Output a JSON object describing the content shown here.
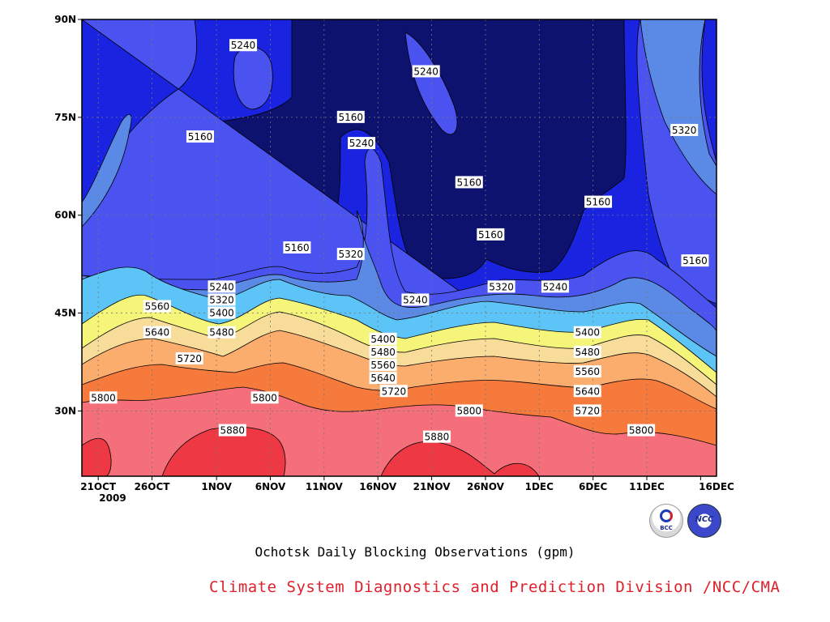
{
  "chart_data": {
    "type": "heatmap",
    "title": "Ochotsk Daily Blocking Observations (gpm)",
    "xlabel": "",
    "ylabel": "",
    "x_ticks": [
      "21OCT",
      "26OCT",
      "1NOV",
      "6NOV",
      "11NOV",
      "16NOV",
      "21NOV",
      "26NOV",
      "1DEC",
      "6DEC",
      "11DEC",
      "16DEC"
    ],
    "x_tick_year": "2009",
    "y_ticks": [
      "30N",
      "45N",
      "60N",
      "75N",
      "90N"
    ],
    "x_range_days": [
      0,
      59
    ],
    "y_range_lat": [
      20,
      90
    ],
    "contour_levels": [
      5160,
      5240,
      5320,
      5400,
      5480,
      5560,
      5640,
      5720,
      5800,
      5880
    ],
    "level_colors": [
      "#0c126e",
      "#1a24e0",
      "#4a52ef",
      "#5b8ae6",
      "#5cc4f6",
      "#f5f57a",
      "#f8dc9a",
      "#fbad6e",
      "#f57a3c",
      "#f46f7a",
      "#ee3844"
    ],
    "grid": true,
    "contour_labels": [
      {
        "text": "5240",
        "day": 15,
        "lat": 86
      },
      {
        "text": "5240",
        "day": 32,
        "lat": 82
      },
      {
        "text": "5160",
        "day": 11,
        "lat": 72
      },
      {
        "text": "5160",
        "day": 25,
        "lat": 75
      },
      {
        "text": "5240",
        "day": 26,
        "lat": 71
      },
      {
        "text": "5320",
        "day": 56,
        "lat": 73
      },
      {
        "text": "5160",
        "day": 36,
        "lat": 65
      },
      {
        "text": "5160",
        "day": 48,
        "lat": 62
      },
      {
        "text": "5160",
        "day": 38,
        "lat": 57
      },
      {
        "text": "5160",
        "day": 20,
        "lat": 55
      },
      {
        "text": "5320",
        "day": 25,
        "lat": 54
      },
      {
        "text": "5160",
        "day": 57,
        "lat": 53
      },
      {
        "text": "5240",
        "day": 13,
        "lat": 49
      },
      {
        "text": "5320",
        "day": 39,
        "lat": 49
      },
      {
        "text": "5240",
        "day": 44,
        "lat": 49
      },
      {
        "text": "5320",
        "day": 13,
        "lat": 47
      },
      {
        "text": "5240",
        "day": 31,
        "lat": 47
      },
      {
        "text": "5560",
        "day": 7,
        "lat": 46
      },
      {
        "text": "5400",
        "day": 13,
        "lat": 45
      },
      {
        "text": "5480",
        "day": 13,
        "lat": 42
      },
      {
        "text": "5640",
        "day": 7,
        "lat": 42
      },
      {
        "text": "5400",
        "day": 28,
        "lat": 41
      },
      {
        "text": "5400",
        "day": 47,
        "lat": 42
      },
      {
        "text": "5480",
        "day": 28,
        "lat": 39
      },
      {
        "text": "5480",
        "day": 47,
        "lat": 39
      },
      {
        "text": "5560",
        "day": 28,
        "lat": 37
      },
      {
        "text": "5560",
        "day": 47,
        "lat": 36
      },
      {
        "text": "5720",
        "day": 10,
        "lat": 38
      },
      {
        "text": "5640",
        "day": 28,
        "lat": 35
      },
      {
        "text": "5640",
        "day": 47,
        "lat": 33
      },
      {
        "text": "5720",
        "day": 29,
        "lat": 33
      },
      {
        "text": "5800",
        "day": 2,
        "lat": 32
      },
      {
        "text": "5800",
        "day": 17,
        "lat": 32
      },
      {
        "text": "5800",
        "day": 36,
        "lat": 30
      },
      {
        "text": "5720",
        "day": 47,
        "lat": 30
      },
      {
        "text": "5800",
        "day": 52,
        "lat": 27
      },
      {
        "text": "5880",
        "day": 14,
        "lat": 27
      },
      {
        "text": "5880",
        "day": 33,
        "lat": 26
      }
    ]
  },
  "footer": {
    "credit": "Climate System Diagnostics and Prediction Division /NCC/CMA",
    "logo_left": "BCC",
    "logo_right": "NCC"
  }
}
